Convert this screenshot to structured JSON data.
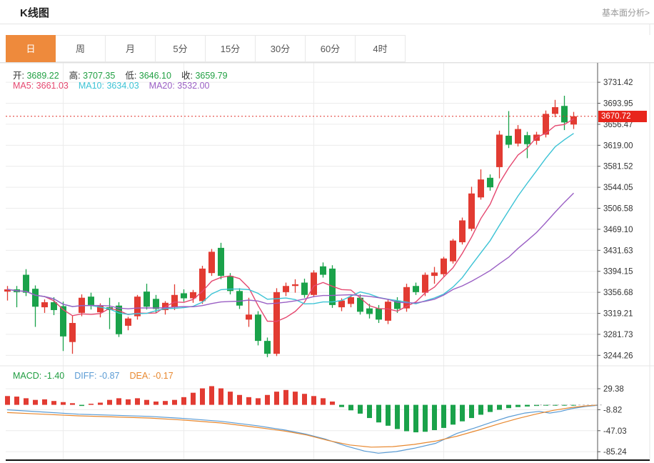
{
  "header": {
    "title": "K线图",
    "link": "基本面分析>"
  },
  "tabs": {
    "items": [
      "日",
      "周",
      "月",
      "5分",
      "15分",
      "30分",
      "60分",
      "4时"
    ],
    "active_index": 0
  },
  "legend": {
    "ohlc": [
      {
        "label": "开:",
        "value": "3689.22"
      },
      {
        "label": "高:",
        "value": "3707.35"
      },
      {
        "label": "低:",
        "value": "3646.10"
      },
      {
        "label": "收:",
        "value": "3659.79"
      }
    ],
    "ma": [
      {
        "label": "MA5:",
        "value": "3661.03",
        "color_key": "ma5"
      },
      {
        "label": "MA10:",
        "value": "3634.03",
        "color_key": "ma10"
      },
      {
        "label": "MA20:",
        "value": "3532.00",
        "color_key": "ma20"
      }
    ]
  },
  "macd_legend": [
    {
      "label": "MACD:",
      "value": "-1.40",
      "color_key": "macd_text"
    },
    {
      "label": "DIFF:",
      "value": "-0.87",
      "color_key": "diff"
    },
    {
      "label": "DEA:",
      "value": "-0.17",
      "color_key": "dea"
    }
  ],
  "price_axis": {
    "current_price": "3670.72"
  },
  "colors": {
    "up": "#e23b32",
    "down": "#1aa24a",
    "ma5": "#e5476f",
    "ma10": "#3cc3d5",
    "ma20": "#9a5fc4",
    "diff": "#5a9bd4",
    "dea": "#e8882f",
    "macd_text": "#1f9d40",
    "ohlc_value": "#21a043",
    "tab_active_bg": "#ee8a3c",
    "price_line": "#e0302a",
    "tag_bg": "#e8251c",
    "grid": "#ececec",
    "axis_line": "#555555",
    "text": "#333333",
    "border": "#e5e5e5",
    "bottom_line": "#111111",
    "dash_gray": "#bbbbbb"
  },
  "chart_data": {
    "type": "candlestick+macd",
    "title": "K线图",
    "legend_position": "top-left-overlay",
    "grid": true,
    "price_axis_values": [
      3731.42,
      3693.95,
      3656.47,
      3619.0,
      3581.52,
      3544.05,
      3506.58,
      3469.1,
      3431.63,
      3394.15,
      3356.68,
      3319.21,
      3281.73,
      3244.26
    ],
    "price_range": [
      3223,
      3766
    ],
    "current_price": 3670.72,
    "ohlc_last": {
      "open": 3689.22,
      "high": 3707.35,
      "low": 3646.1,
      "close": 3659.79
    },
    "ma_values": {
      "MA5": 3661.03,
      "MA10": 3634.03,
      "MA20": 3532.0
    },
    "ma_windows": [
      5,
      10,
      20
    ],
    "time_grid_indices": [
      6,
      19,
      33,
      47
    ],
    "candles": [
      [
        3358,
        3368,
        3342,
        3362
      ],
      [
        3362,
        3368,
        3330,
        3357
      ],
      [
        3388,
        3398,
        3350,
        3356
      ],
      [
        3363,
        3369,
        3295,
        3331
      ],
      [
        3330,
        3344,
        3320,
        3339
      ],
      [
        3339,
        3348,
        3316,
        3325
      ],
      [
        3332,
        3340,
        3252,
        3278
      ],
      [
        3268,
        3315,
        3247,
        3302
      ],
      [
        3320,
        3353,
        3314,
        3347
      ],
      [
        3349,
        3356,
        3326,
        3334
      ],
      [
        3321,
        3337,
        3312,
        3333
      ],
      [
        3330,
        3347,
        3291,
        3325
      ],
      [
        3333,
        3339,
        3277,
        3282
      ],
      [
        3297,
        3313,
        3289,
        3310
      ],
      [
        3314,
        3352,
        3308,
        3349
      ],
      [
        3358,
        3372,
        3326,
        3331
      ],
      [
        3345,
        3352,
        3320,
        3327
      ],
      [
        3325,
        3341,
        3317,
        3338
      ],
      [
        3330,
        3371,
        3325,
        3352
      ],
      [
        3355,
        3362,
        3340,
        3346
      ],
      [
        3346,
        3361,
        3338,
        3357
      ],
      [
        3341,
        3404,
        3336,
        3399
      ],
      [
        3391,
        3434,
        3386,
        3429
      ],
      [
        3436,
        3445,
        3380,
        3386
      ],
      [
        3386,
        3391,
        3353,
        3359
      ],
      [
        3359,
        3364,
        3327,
        3333
      ],
      [
        3308,
        3347,
        3295,
        3317
      ],
      [
        3317,
        3323,
        3262,
        3270
      ],
      [
        3270,
        3276,
        3241,
        3247
      ],
      [
        3247,
        3364,
        3243,
        3357
      ],
      [
        3357,
        3374,
        3350,
        3368
      ],
      [
        3368,
        3380,
        3356,
        3371
      ],
      [
        3374,
        3381,
        3347,
        3352
      ],
      [
        3352,
        3396,
        3348,
        3392
      ],
      [
        3403,
        3410,
        3383,
        3388
      ],
      [
        3399,
        3405,
        3329,
        3334
      ],
      [
        3330,
        3346,
        3323,
        3342
      ],
      [
        3336,
        3352,
        3330,
        3348
      ],
      [
        3347,
        3353,
        3317,
        3322
      ],
      [
        3328,
        3336,
        3310,
        3318
      ],
      [
        3328,
        3334,
        3302,
        3308
      ],
      [
        3306,
        3344,
        3300,
        3340
      ],
      [
        3342,
        3348,
        3320,
        3327
      ],
      [
        3328,
        3372,
        3322,
        3366
      ],
      [
        3368,
        3374,
        3352,
        3357
      ],
      [
        3356,
        3392,
        3350,
        3388
      ],
      [
        3386,
        3402,
        3372,
        3392
      ],
      [
        3389,
        3420,
        3385,
        3417
      ],
      [
        3412,
        3452,
        3408,
        3449
      ],
      [
        3446,
        3490,
        3442,
        3485
      ],
      [
        3470,
        3545,
        3466,
        3533
      ],
      [
        3526,
        3576,
        3522,
        3558
      ],
      [
        3561,
        3567,
        3538,
        3544
      ],
      [
        3580,
        3645,
        3560,
        3638
      ],
      [
        3636,
        3680,
        3614,
        3620
      ],
      [
        3622,
        3655,
        3617,
        3648
      ],
      [
        3637,
        3643,
        3596,
        3621
      ],
      [
        3627,
        3643,
        3620,
        3638
      ],
      [
        3638,
        3681,
        3633,
        3675
      ],
      [
        3675,
        3700,
        3669,
        3687
      ],
      [
        3689.22,
        3707.35,
        3646.1,
        3659.79
      ],
      [
        3656,
        3678.5,
        3648,
        3670.72
      ]
    ],
    "macd": {
      "values": {
        "MACD": -1.4,
        "DIFF": -0.87,
        "DEA": -0.17
      },
      "axis_values": [
        29.38,
        -8.82,
        -47.03,
        -85.24
      ],
      "hist": [
        16,
        15,
        12,
        9,
        10,
        7,
        5,
        3,
        -2,
        2,
        4,
        9,
        12,
        10,
        12,
        9,
        6,
        7,
        9,
        14,
        22,
        30,
        34,
        30,
        24,
        18,
        14,
        12,
        18,
        24,
        27,
        24,
        20,
        16,
        12,
        6,
        -4,
        -10,
        -16,
        -24,
        -32,
        -38,
        -44,
        -48,
        -50,
        -49,
        -46,
        -42,
        -36,
        -30,
        -24,
        -18,
        -13,
        -9,
        -6,
        -4,
        -3,
        -2,
        -1.5,
        -1.2,
        -1.5,
        -1.4
      ],
      "diff_points": [
        [
          10,
          -9
        ],
        [
          60,
          -13
        ],
        [
          110,
          -17
        ],
        [
          160,
          -19
        ],
        [
          210,
          -21
        ],
        [
          260,
          -25
        ],
        [
          310,
          -30
        ],
        [
          360,
          -38
        ],
        [
          400,
          -46
        ],
        [
          428,
          -53
        ],
        [
          455,
          -62
        ],
        [
          485,
          -75
        ],
        [
          510,
          -84
        ],
        [
          530,
          -88
        ],
        [
          555,
          -85
        ],
        [
          580,
          -79
        ],
        [
          610,
          -70
        ],
        [
          640,
          -52
        ],
        [
          665,
          -42
        ],
        [
          690,
          -31
        ],
        [
          712,
          -22
        ],
        [
          735,
          -15
        ],
        [
          755,
          -12
        ],
        [
          770,
          -15
        ],
        [
          785,
          -12
        ],
        [
          800,
          -7
        ],
        [
          820,
          -3
        ],
        [
          837,
          -0.9
        ]
      ],
      "dea_points": [
        [
          10,
          -14
        ],
        [
          60,
          -17
        ],
        [
          110,
          -20
        ],
        [
          160,
          -22
        ],
        [
          210,
          -24
        ],
        [
          260,
          -28
        ],
        [
          310,
          -33
        ],
        [
          360,
          -41
        ],
        [
          400,
          -48
        ],
        [
          430,
          -55
        ],
        [
          460,
          -65
        ],
        [
          490,
          -73
        ],
        [
          520,
          -77
        ],
        [
          550,
          -76
        ],
        [
          580,
          -72
        ],
        [
          610,
          -66
        ],
        [
          640,
          -57
        ],
        [
          670,
          -46
        ],
        [
          700,
          -34
        ],
        [
          725,
          -25
        ],
        [
          750,
          -17
        ],
        [
          775,
          -10
        ],
        [
          800,
          -5
        ],
        [
          820,
          -2
        ],
        [
          837,
          -0.2
        ]
      ]
    }
  }
}
